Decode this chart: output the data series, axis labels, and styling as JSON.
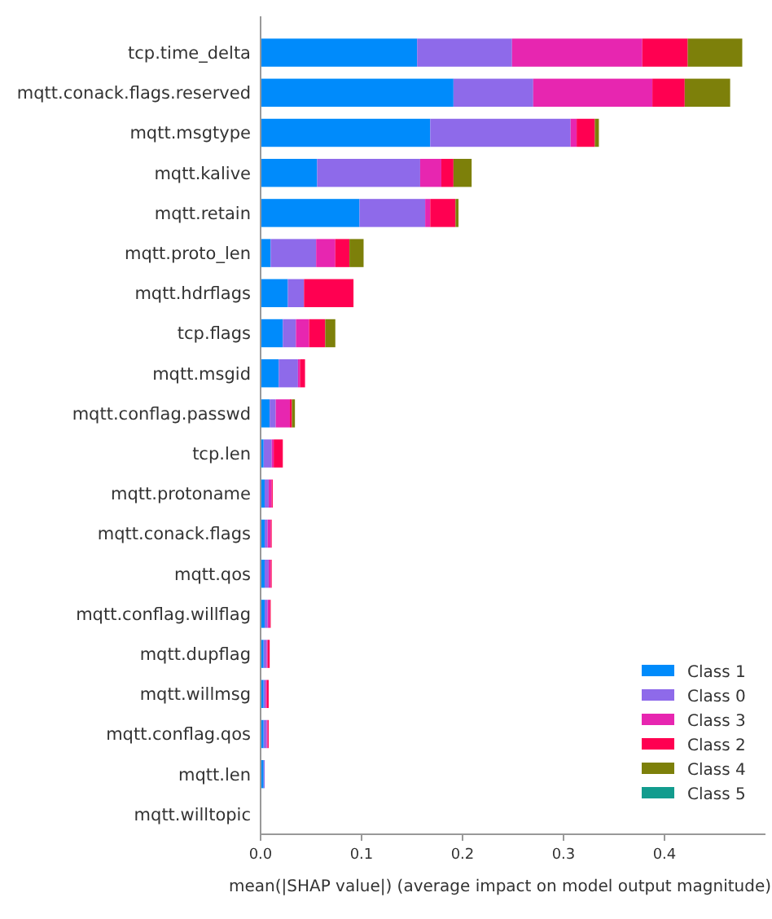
{
  "chart_data": {
    "type": "bar",
    "orientation": "horizontal",
    "stacked": true,
    "xlabel": "mean(|SHAP value|) (average impact on model output magnitude)",
    "categories": [
      "tcp.time_delta",
      "mqtt.conack.flags.reserved",
      "mqtt.msgtype",
      "mqtt.kalive",
      "mqtt.retain",
      "mqtt.proto_len",
      "mqtt.hdrflags",
      "tcp.flags",
      "mqtt.msgid",
      "mqtt.conflag.passwd",
      "tcp.len",
      "mqtt.protoname",
      "mqtt.conack.flags",
      "mqtt.qos",
      "mqtt.conflag.willflag",
      "mqtt.dupflag",
      "mqtt.willmsg",
      "mqtt.conflag.qos",
      "mqtt.len",
      "mqtt.willtopic"
    ],
    "series": [
      {
        "name": "Class 1",
        "color": "#008bfb",
        "values": [
          0.155,
          0.191,
          0.168,
          0.056,
          0.098,
          0.01,
          0.027,
          0.022,
          0.018,
          0.009,
          0.003,
          0.004,
          0.004,
          0.004,
          0.004,
          0.003,
          0.003,
          0.003,
          0.003,
          0
        ]
      },
      {
        "name": "Class 0",
        "color": "#8e6aea",
        "values": [
          0.094,
          0.079,
          0.139,
          0.102,
          0.065,
          0.045,
          0.016,
          0.013,
          0.019,
          0.006,
          0.008,
          0.004,
          0.003,
          0.004,
          0.003,
          0.003,
          0.002,
          0.003,
          0.001,
          0
        ]
      },
      {
        "name": "Class 3",
        "color": "#e726b0",
        "values": [
          0.129,
          0.118,
          0.006,
          0.021,
          0.005,
          0.019,
          0,
          0.013,
          0.002,
          0.014,
          0.002,
          0.003,
          0.003,
          0.002,
          0.002,
          0.001,
          0.001,
          0.001,
          0,
          0
        ]
      },
      {
        "name": "Class 2",
        "color": "#ff0051",
        "values": [
          0.045,
          0.032,
          0.018,
          0.012,
          0.025,
          0.014,
          0.049,
          0.016,
          0.005,
          0.002,
          0.009,
          0.001,
          0.001,
          0.001,
          0.001,
          0.002,
          0.002,
          0.001,
          0,
          0
        ]
      },
      {
        "name": "Class 4",
        "color": "#7d800a",
        "values": [
          0.054,
          0.045,
          0.004,
          0.018,
          0.003,
          0.014,
          0,
          0.01,
          0,
          0.003,
          0,
          0,
          0,
          0,
          0,
          0,
          0,
          0,
          0,
          0
        ]
      },
      {
        "name": "Class 5",
        "color": "#129c8e",
        "values": [
          0,
          0,
          0,
          0,
          0,
          0,
          0,
          0,
          0,
          0,
          0,
          0,
          0,
          0,
          0,
          0,
          0,
          0,
          0,
          0
        ]
      }
    ],
    "xlim": [
      0,
      0.5
    ],
    "xticks": [
      {
        "value": 0,
        "label": "0.0"
      },
      0.1,
      0.2,
      0.3,
      0.4
    ],
    "legend": "bottom right",
    "grid": false
  }
}
